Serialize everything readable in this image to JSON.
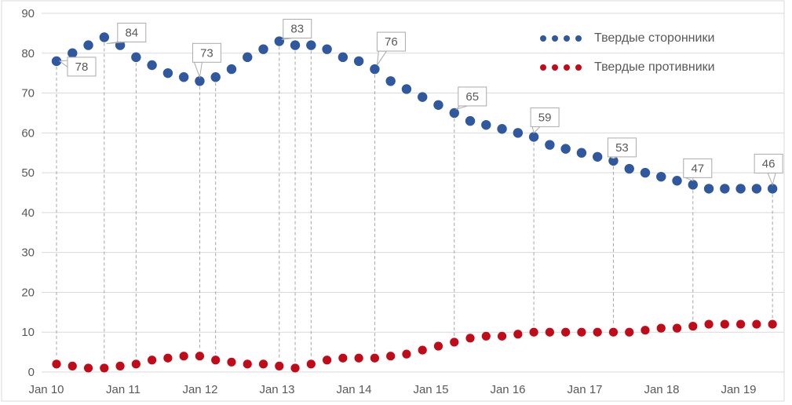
{
  "chart_data": {
    "type": "scatter",
    "title": "",
    "x_tick_labels": [
      "Jan 10",
      "Jan 11",
      "Jan 12",
      "Jan 13",
      "Jan 14",
      "Jan 15",
      "Jan 16",
      "Jan 17",
      "Jan 18",
      "Jan 19"
    ],
    "y_ticks": [
      "0",
      "10",
      "20",
      "30",
      "40",
      "50",
      "60",
      "70",
      "80",
      "90"
    ],
    "ylim": [
      0,
      90
    ],
    "grid": "horizontal",
    "legend_position": "top-right",
    "marker_style": "round-dot",
    "series": [
      {
        "name": "Твердые сторонники",
        "color": "#30589F",
        "values": [
          78,
          80,
          82,
          84,
          82,
          79,
          77,
          75,
          74,
          73,
          74,
          76,
          79,
          81,
          83,
          82,
          82,
          81,
          79,
          78,
          76,
          73,
          71,
          69,
          67,
          65,
          63,
          62,
          61,
          60,
          59,
          57,
          56,
          55,
          54,
          53,
          51,
          50,
          49,
          48,
          47,
          46,
          46,
          46,
          46,
          46
        ]
      },
      {
        "name": "Твердые противники",
        "color": "#C20B18",
        "values": [
          2,
          1.5,
          1,
          1,
          1.5,
          2,
          3,
          3.5,
          4,
          4,
          3,
          2.5,
          2,
          2,
          1.5,
          1,
          2,
          3,
          3.5,
          3.5,
          3.5,
          4,
          4.5,
          5.5,
          6.5,
          7.5,
          8.5,
          9,
          9,
          9.5,
          10,
          10,
          10,
          10,
          10,
          10,
          10,
          10.5,
          11,
          11,
          11.5,
          12,
          12,
          12,
          12,
          12
        ]
      }
    ],
    "point_labels": [
      {
        "index": 0,
        "label": "78"
      },
      {
        "index": 3,
        "label": "84"
      },
      {
        "index": 9,
        "label": "73"
      },
      {
        "index": 14,
        "label": "83"
      },
      {
        "index": 20,
        "label": "76"
      },
      {
        "index": 25,
        "label": "65"
      },
      {
        "index": 30,
        "label": "59"
      },
      {
        "index": 35,
        "label": "53"
      },
      {
        "index": 40,
        "label": "47"
      },
      {
        "index": 45,
        "label": "46"
      }
    ],
    "dropline_indices": [
      0,
      3,
      5,
      9,
      10,
      14,
      15,
      16,
      20,
      25,
      30,
      35,
      40,
      45
    ]
  },
  "colors": {
    "gridline": "#D9D9D9",
    "chart_border": "#D9D9D9",
    "dropline": "#A6A6A6",
    "axis_text": "#595959",
    "callout_border": "#ABABAB",
    "callout_fill": "#FFFFFF",
    "callout_text": "#595959"
  }
}
